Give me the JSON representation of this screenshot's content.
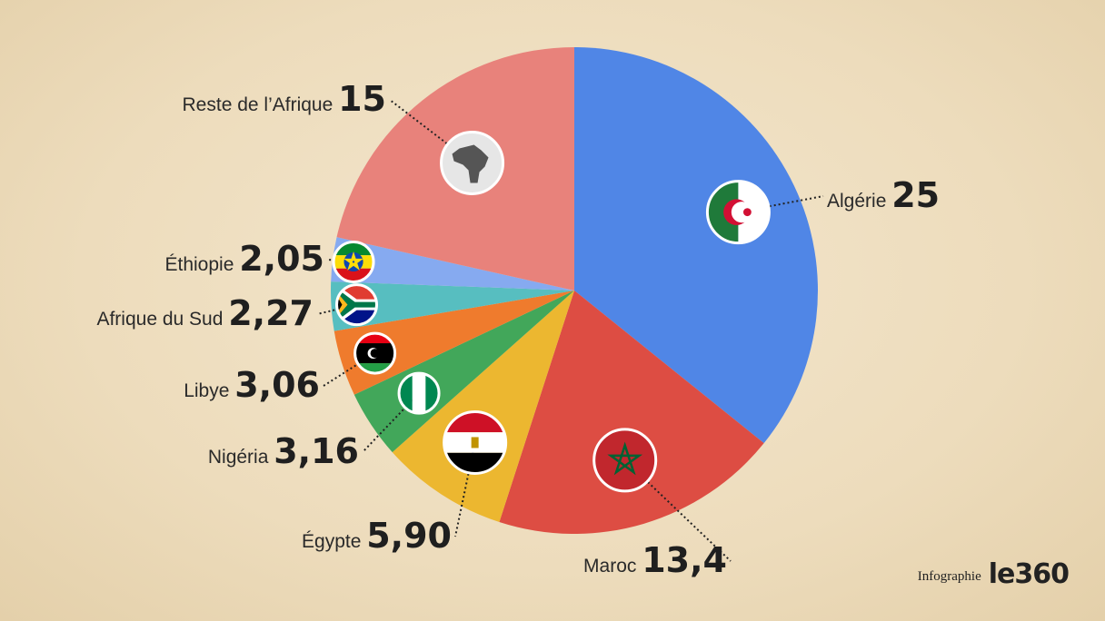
{
  "chart_data": {
    "type": "pie",
    "slices": [
      {
        "name": "Algérie",
        "value_label": "25",
        "value": 25,
        "color": "#5086e6",
        "icon": "algeria-flag-icon"
      },
      {
        "name": "Maroc",
        "value_label": "13,4",
        "value": 13.4,
        "color": "#dd4d43",
        "icon": "morocco-flag-icon"
      },
      {
        "name": "Égypte",
        "value_label": "5,90",
        "value": 5.9,
        "color": "#ecb730",
        "icon": "egypt-flag-icon"
      },
      {
        "name": "Nigéria",
        "value_label": "3,16",
        "value": 3.16,
        "color": "#42a75a",
        "icon": "nigeria-flag-icon"
      },
      {
        "name": "Libye",
        "value_label": "3,06",
        "value": 3.06,
        "color": "#ef7b2d",
        "icon": "libya-flag-icon"
      },
      {
        "name": "Afrique du Sud",
        "value_label": "2,27",
        "value": 2.27,
        "color": "#57bec0",
        "icon": "south-africa-flag-icon"
      },
      {
        "name": "Éthiopie",
        "value_label": "2,05",
        "value": 2.05,
        "color": "#86aaf0",
        "icon": "ethiopia-flag-icon"
      },
      {
        "name": "Reste de l’Afrique",
        "value_label": "15",
        "value": 15,
        "color": "#e8827b",
        "icon": "africa-map-icon"
      }
    ]
  },
  "footer": {
    "label": "Infographie",
    "logo": "le360"
  }
}
